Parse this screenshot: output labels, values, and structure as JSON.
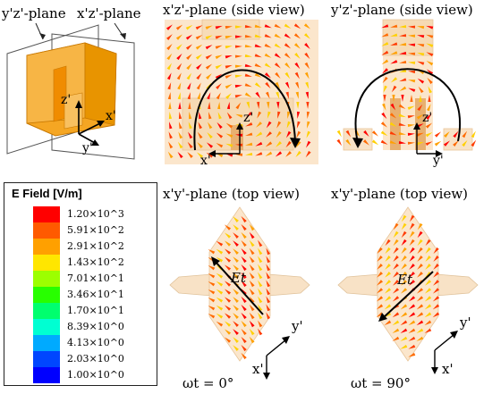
{
  "iso": {
    "plane_yz": "y'z'-plane",
    "plane_xz": "x'z'-plane",
    "axis_z": "z'",
    "axis_x": "x'",
    "axis_y": "y'"
  },
  "side_xz": {
    "title": "x'z'-plane (side view)",
    "axis_z": "z'",
    "axis_x": "x'"
  },
  "side_yz": {
    "title": "y'z'-plane (side view)",
    "axis_z": "z'",
    "axis_y": "y'"
  },
  "top0": {
    "title": "x'y'-plane (top view)",
    "et": "Et",
    "axis_y": "y'",
    "axis_x": "x'",
    "caption": "ωt = 0°"
  },
  "top90": {
    "title": "x'y'-plane (top view)",
    "et": "Et",
    "axis_y": "y'",
    "axis_x": "x'",
    "caption": "ωt = 90°"
  },
  "legend": {
    "title": "E Field [V/m]",
    "entries": [
      {
        "label": "1.20×10^3",
        "color": "#ff0000"
      },
      {
        "label": "5.91×10^2",
        "color": "#ff5a00"
      },
      {
        "label": "2.91×10^2",
        "color": "#ffa000"
      },
      {
        "label": "1.43×10^2",
        "color": "#ffe600"
      },
      {
        "label": "7.01×10^1",
        "color": "#9cff00"
      },
      {
        "label": "3.46×10^1",
        "color": "#28ff00"
      },
      {
        "label": "1.70×10^1",
        "color": "#00ff6e"
      },
      {
        "label": "8.39×10^0",
        "color": "#00ffd2"
      },
      {
        "label": "4.13×10^0",
        "color": "#00aaff"
      },
      {
        "label": "2.03×10^0",
        "color": "#0046ff"
      },
      {
        "label": "1.00×10^0",
        "color": "#0000ff"
      }
    ]
  }
}
